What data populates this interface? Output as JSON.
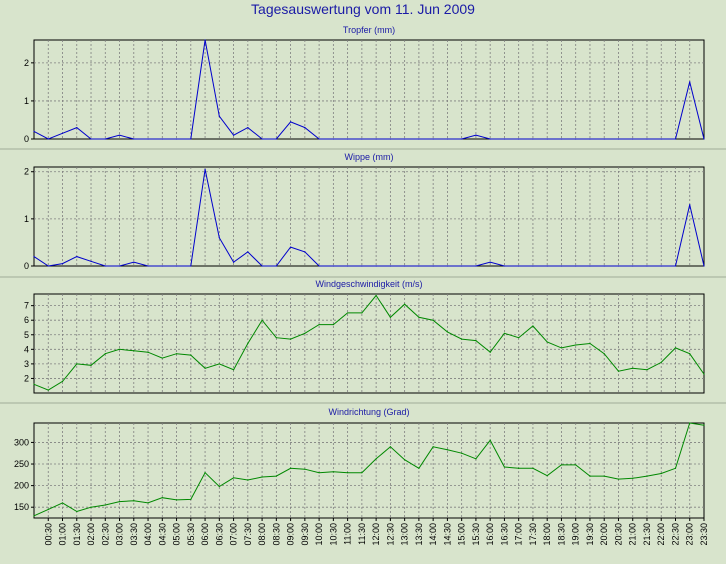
{
  "title": "Tagesauswertung vom 11. Jun 2009",
  "chart_data": [
    {
      "type": "line",
      "title": "Tropfer (mm)",
      "color": "#0000cc",
      "ylim": [
        0,
        2.6
      ],
      "yticks": [
        0,
        1,
        2
      ],
      "x": [
        "00:00",
        "00:30",
        "01:00",
        "01:30",
        "02:00",
        "02:30",
        "03:00",
        "03:30",
        "04:00",
        "04:30",
        "05:00",
        "05:30",
        "06:00",
        "06:30",
        "07:00",
        "07:30",
        "08:00",
        "08:30",
        "09:00",
        "09:30",
        "10:00",
        "10:30",
        "11:00",
        "11:30",
        "12:00",
        "12:30",
        "13:00",
        "13:30",
        "14:00",
        "14:30",
        "15:00",
        "15:30",
        "16:00",
        "16:30",
        "17:00",
        "17:30",
        "18:00",
        "18:30",
        "19:00",
        "19:30",
        "20:00",
        "20:30",
        "21:00",
        "21:30",
        "22:00",
        "22:30",
        "23:00",
        "23:30"
      ],
      "values": [
        0.2,
        0,
        0.15,
        0.3,
        0,
        0,
        0.1,
        0,
        0,
        0,
        0,
        0,
        2.6,
        0.6,
        0.1,
        0.3,
        0,
        0,
        0.45,
        0.3,
        0,
        0,
        0,
        0,
        0,
        0,
        0,
        0,
        0,
        0,
        0,
        0.1,
        0,
        0,
        0,
        0,
        0,
        0,
        0,
        0,
        0,
        0,
        0,
        0,
        0,
        0,
        1.5,
        0
      ]
    },
    {
      "type": "line",
      "title": "Wippe (mm)",
      "color": "#0000cc",
      "ylim": [
        0,
        2.1
      ],
      "yticks": [
        0,
        1,
        2
      ],
      "x": [
        "00:00",
        "00:30",
        "01:00",
        "01:30",
        "02:00",
        "02:30",
        "03:00",
        "03:30",
        "04:00",
        "04:30",
        "05:00",
        "05:30",
        "06:00",
        "06:30",
        "07:00",
        "07:30",
        "08:00",
        "08:30",
        "09:00",
        "09:30",
        "10:00",
        "10:30",
        "11:00",
        "11:30",
        "12:00",
        "12:30",
        "13:00",
        "13:30",
        "14:00",
        "14:30",
        "15:00",
        "15:30",
        "16:00",
        "16:30",
        "17:00",
        "17:30",
        "18:00",
        "18:30",
        "19:00",
        "19:30",
        "20:00",
        "20:30",
        "21:00",
        "21:30",
        "22:00",
        "22:30",
        "23:00",
        "23:30"
      ],
      "values": [
        0.2,
        0,
        0.05,
        0.2,
        0.1,
        0,
        0,
        0.08,
        0,
        0,
        0,
        0,
        2.05,
        0.6,
        0.08,
        0.3,
        0,
        0,
        0.4,
        0.3,
        0,
        0,
        0,
        0,
        0,
        0,
        0,
        0,
        0,
        0,
        0,
        0,
        0.08,
        0,
        0,
        0,
        0,
        0,
        0,
        0,
        0,
        0,
        0,
        0,
        0,
        0,
        1.3,
        0
      ]
    },
    {
      "type": "line",
      "title": "Windgeschwindigkeit (m/s)",
      "color": "#008800",
      "ylim": [
        1,
        7.8
      ],
      "yticks": [
        2,
        3,
        4,
        5,
        6,
        7
      ],
      "x": [
        "00:00",
        "00:30",
        "01:00",
        "01:30",
        "02:00",
        "02:30",
        "03:00",
        "03:30",
        "04:00",
        "04:30",
        "05:00",
        "05:30",
        "06:00",
        "06:30",
        "07:00",
        "07:30",
        "08:00",
        "08:30",
        "09:00",
        "09:30",
        "10:00",
        "10:30",
        "11:00",
        "11:30",
        "12:00",
        "12:30",
        "13:00",
        "13:30",
        "14:00",
        "14:30",
        "15:00",
        "15:30",
        "16:00",
        "16:30",
        "17:00",
        "17:30",
        "18:00",
        "18:30",
        "19:00",
        "19:30",
        "20:00",
        "20:30",
        "21:00",
        "21:30",
        "22:00",
        "22:30",
        "23:00",
        "23:30"
      ],
      "values": [
        1.6,
        1.2,
        1.8,
        3.0,
        2.9,
        3.7,
        4.0,
        3.9,
        3.8,
        3.4,
        3.7,
        3.6,
        2.7,
        3.0,
        2.6,
        4.4,
        6.0,
        4.8,
        4.7,
        5.1,
        5.7,
        5.7,
        6.5,
        6.5,
        7.7,
        6.2,
        7.1,
        6.2,
        6.0,
        5.2,
        4.7,
        4.6,
        3.8,
        5.1,
        4.8,
        5.6,
        4.5,
        4.1,
        4.3,
        4.4,
        3.7,
        2.5,
        2.7,
        2.6,
        3.1,
        4.1,
        3.7,
        2.3
      ]
    },
    {
      "type": "line",
      "title": "Windrichtung (Grad)",
      "color": "#008800",
      "ylim": [
        125,
        345
      ],
      "yticks": [
        150,
        200,
        250,
        300
      ],
      "x": [
        "00:00",
        "00:30",
        "01:00",
        "01:30",
        "02:00",
        "02:30",
        "03:00",
        "03:30",
        "04:00",
        "04:30",
        "05:00",
        "05:30",
        "06:00",
        "06:30",
        "07:00",
        "07:30",
        "08:00",
        "08:30",
        "09:00",
        "09:30",
        "10:00",
        "10:30",
        "11:00",
        "11:30",
        "12:00",
        "12:30",
        "13:00",
        "13:30",
        "14:00",
        "14:30",
        "15:00",
        "15:30",
        "16:00",
        "16:30",
        "17:00",
        "17:30",
        "18:00",
        "18:30",
        "19:00",
        "19:30",
        "20:00",
        "20:30",
        "21:00",
        "21:30",
        "22:00",
        "22:30",
        "23:00",
        "23:30"
      ],
      "values": [
        130,
        145,
        160,
        140,
        150,
        155,
        163,
        165,
        160,
        172,
        167,
        168,
        230,
        198,
        218,
        213,
        220,
        222,
        240,
        238,
        230,
        232,
        230,
        230,
        262,
        290,
        260,
        240,
        290,
        283,
        275,
        262,
        305,
        243,
        240,
        240,
        223,
        248,
        248,
        222,
        222,
        215,
        217,
        222,
        228,
        240,
        345,
        340
      ]
    }
  ],
  "xticks": [
    "00:30",
    "01:00",
    "01:30",
    "02:00",
    "02:30",
    "03:00",
    "03:30",
    "04:00",
    "04:30",
    "05:00",
    "05:30",
    "06:00",
    "06:30",
    "07:00",
    "07:30",
    "08:00",
    "08:30",
    "09:00",
    "09:30",
    "10:00",
    "10:30",
    "11:00",
    "11:30",
    "12:00",
    "12:30",
    "13:00",
    "13:30",
    "14:00",
    "14:30",
    "15:00",
    "15:30",
    "16:00",
    "16:30",
    "17:00",
    "17:30",
    "18:00",
    "18:30",
    "19:00",
    "19:30",
    "20:00",
    "20:30",
    "21:00",
    "21:30",
    "22:00",
    "22:30",
    "23:00",
    "23:30"
  ]
}
